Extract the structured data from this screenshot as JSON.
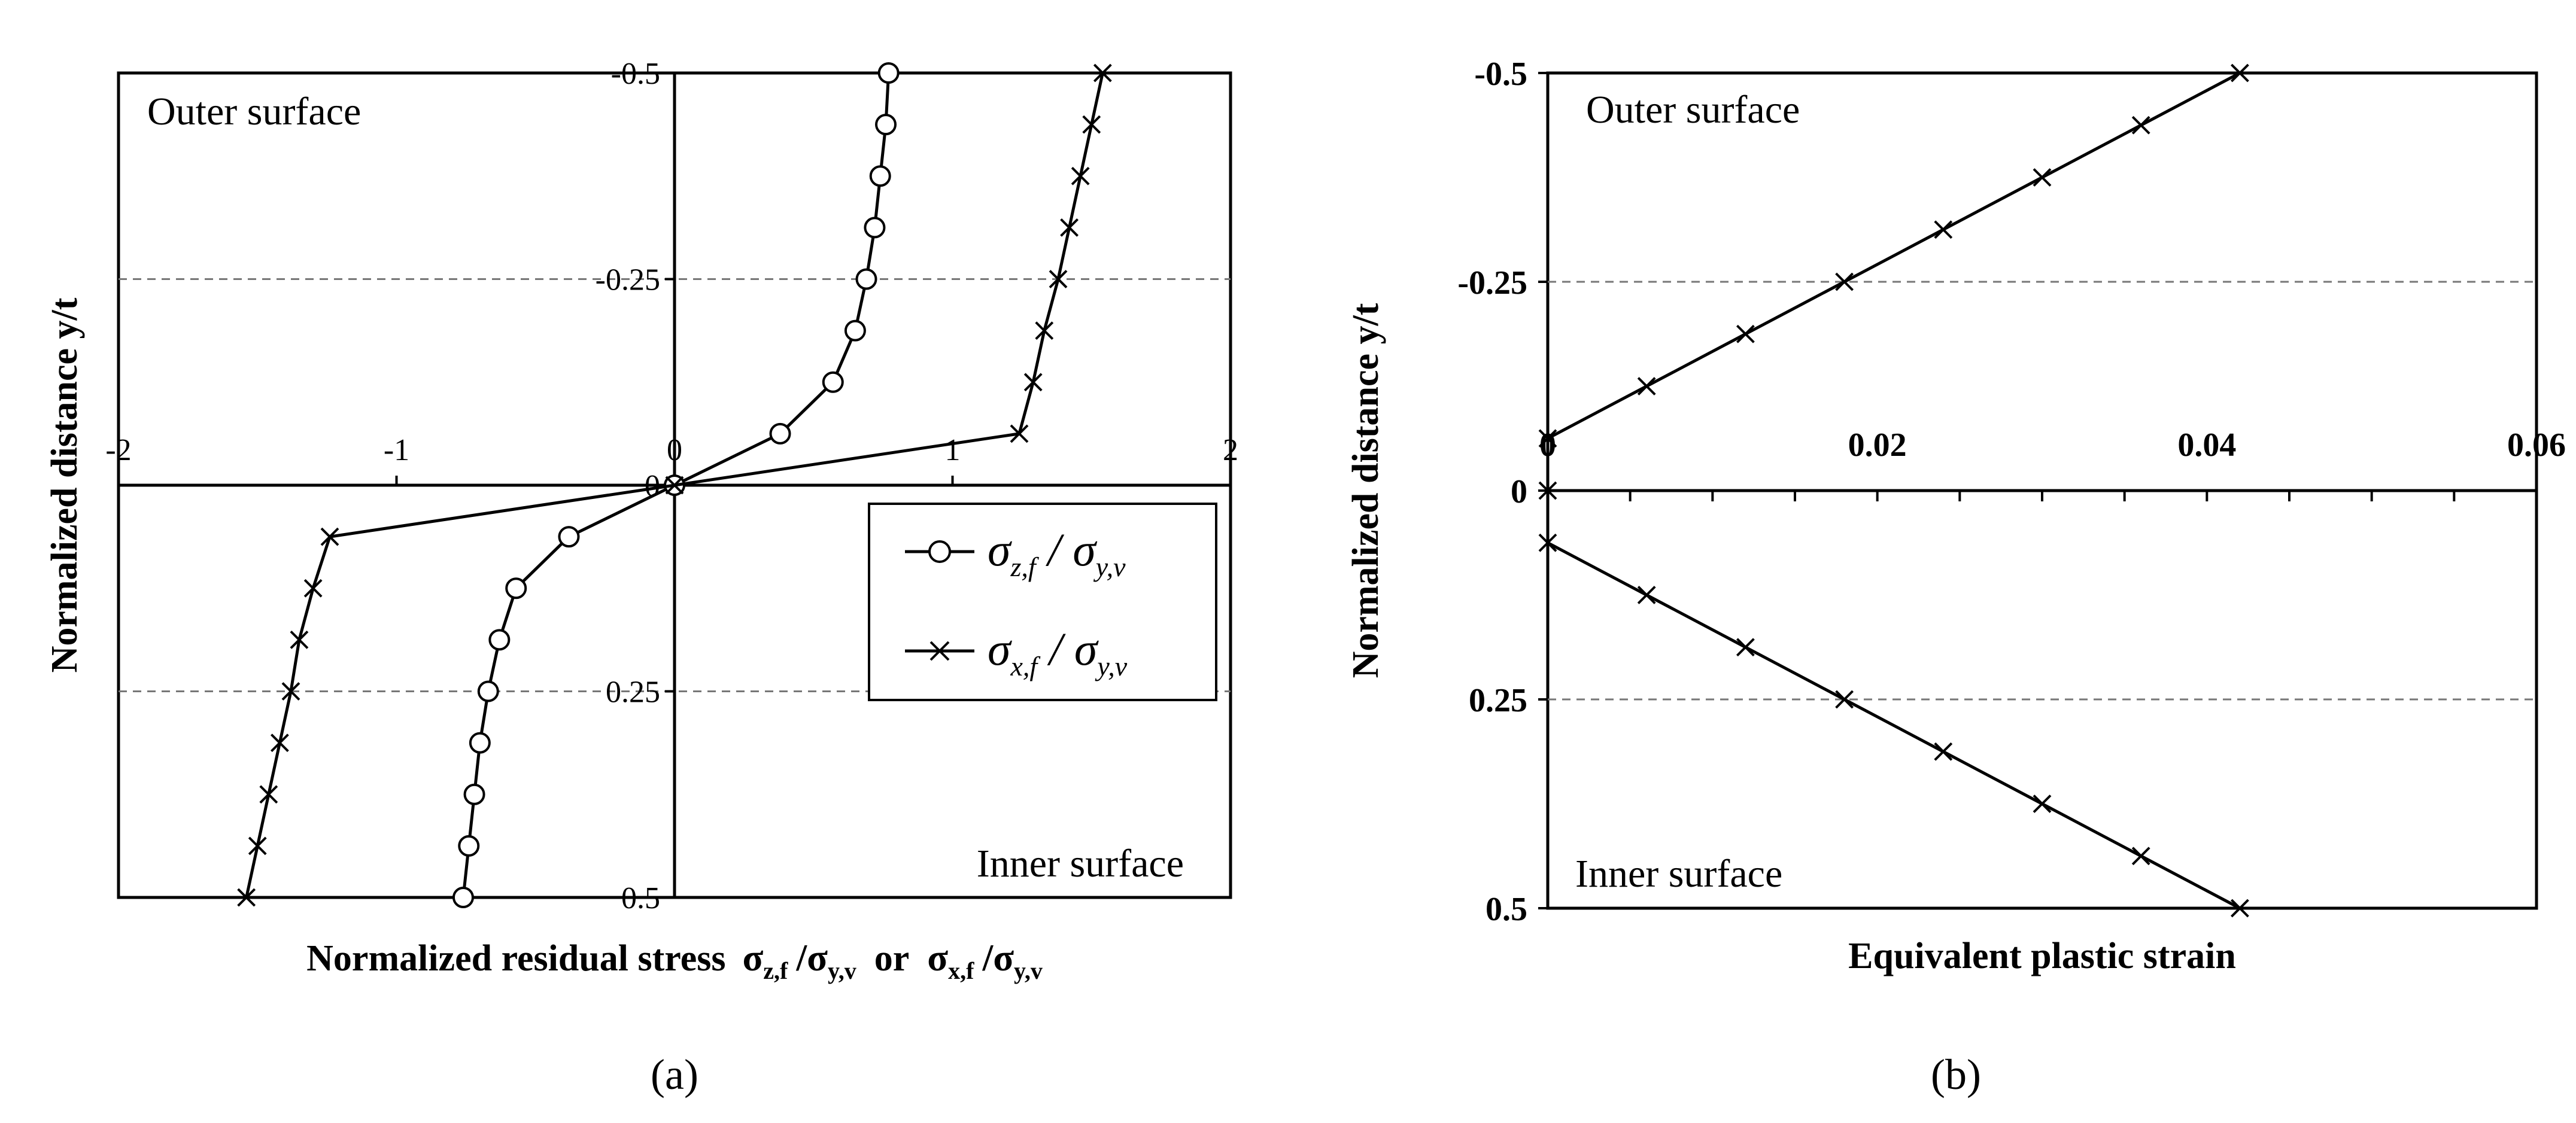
{
  "chart_data": [
    {
      "id": "a",
      "type": "line",
      "caption": "(a)",
      "xlabel": {
        "prefix": "Normalized residual stress",
        "s1": "σ",
        "s1_sub": "z,f",
        "slash": "/",
        "s2": "σ",
        "s2_sub": "y,v",
        "or": "or",
        "s3": "σ",
        "s3_sub": "x,f",
        "s4": "σ",
        "s4_sub": "y,v"
      },
      "ylabel": "Normalized distance  y/t",
      "xlim": [
        -2,
        2
      ],
      "ylim": [
        -0.5,
        0.5
      ],
      "y_inverted": true,
      "x_ticks": [
        {
          "v": -2,
          "label": "-2"
        },
        {
          "v": -1,
          "label": "-1"
        },
        {
          "v": 0,
          "label": "0"
        },
        {
          "v": 1,
          "label": "1"
        },
        {
          "v": 2,
          "label": "2"
        }
      ],
      "y_ticks": [
        {
          "v": -0.5,
          "label": "-0.5"
        },
        {
          "v": -0.25,
          "label": "-0.25"
        },
        {
          "v": 0,
          "label": "0"
        },
        {
          "v": 0.25,
          "label": "0.25"
        },
        {
          "v": 0.5,
          "label": "0.5"
        }
      ],
      "gridlines_y": [
        -0.25,
        0.25
      ],
      "annotations": {
        "outer": "Outer surface",
        "inner": "Inner surface"
      },
      "legend": {
        "position": "right-middle",
        "items": [
          {
            "marker": "circle",
            "num": "σ",
            "num_sub": "z,f",
            "slash": "/",
            "den": "σ",
            "den_sub": "y,v"
          },
          {
            "marker": "x",
            "num": "σ",
            "num_sub": "x,f",
            "slash": "/",
            "den": "σ",
            "den_sub": "y,v"
          }
        ]
      },
      "series": [
        {
          "name": "σz,f/σy,v",
          "marker": "circle",
          "points": [
            [
              0.77,
              -0.5
            ],
            [
              0.76,
              -0.4375
            ],
            [
              0.74,
              -0.375
            ],
            [
              0.72,
              -0.3125
            ],
            [
              0.69,
              -0.25
            ],
            [
              0.65,
              -0.1875
            ],
            [
              0.57,
              -0.125
            ],
            [
              0.38,
              -0.0625
            ],
            [
              0,
              0
            ],
            [
              -0.38,
              0.0625
            ],
            [
              -0.57,
              0.125
            ],
            [
              -0.63,
              0.1875
            ],
            [
              -0.67,
              0.25
            ],
            [
              -0.7,
              0.3125
            ],
            [
              -0.72,
              0.375
            ],
            [
              -0.74,
              0.4375
            ],
            [
              -0.76,
              0.5
            ]
          ]
        },
        {
          "name": "σx,f/σy,v",
          "marker": "x",
          "points": [
            [
              1.54,
              -0.5
            ],
            [
              1.5,
              -0.4375
            ],
            [
              1.46,
              -0.375
            ],
            [
              1.42,
              -0.3125
            ],
            [
              1.38,
              -0.25
            ],
            [
              1.33,
              -0.1875
            ],
            [
              1.29,
              -0.125
            ],
            [
              1.24,
              -0.0625
            ],
            [
              0,
              0
            ],
            [
              -1.24,
              0.0625
            ],
            [
              -1.3,
              0.125
            ],
            [
              -1.35,
              0.1875
            ],
            [
              -1.38,
              0.25
            ],
            [
              -1.42,
              0.3125
            ],
            [
              -1.46,
              0.375
            ],
            [
              -1.5,
              0.4375
            ],
            [
              -1.54,
              0.5
            ]
          ]
        }
      ]
    },
    {
      "id": "b",
      "type": "line",
      "caption": "(b)",
      "xlabel": "Equivalent plastic strain",
      "ylabel": "Normalized distance  y/t",
      "xlim": [
        0,
        0.06
      ],
      "ylim": [
        -0.5,
        0.5
      ],
      "y_inverted": true,
      "x_ticks": [
        {
          "v": 0,
          "label": "0"
        },
        {
          "v": 0.02,
          "label": "0.02"
        },
        {
          "v": 0.04,
          "label": "0.04"
        },
        {
          "v": 0.06,
          "label": "0.06"
        }
      ],
      "x_minor_step": 0.005,
      "y_ticks": [
        {
          "v": -0.5,
          "label": "-0.5"
        },
        {
          "v": -0.25,
          "label": "-0.25"
        },
        {
          "v": 0,
          "label": "0"
        },
        {
          "v": 0.25,
          "label": "0.25"
        },
        {
          "v": 0.5,
          "label": "0.5"
        }
      ],
      "gridlines_y": [
        -0.25,
        0.25
      ],
      "annotations": {
        "outer": "Outer surface",
        "inner": "Inner surface"
      },
      "series": [
        {
          "name": "Equivalent plastic strain",
          "marker": "x",
          "segments": [
            [
              [
                0,
                -0.0625
              ],
              [
                0.006,
                -0.125
              ],
              [
                0.012,
                -0.1875
              ],
              [
                0.018,
                -0.25
              ],
              [
                0.024,
                -0.3125
              ],
              [
                0.03,
                -0.375
              ],
              [
                0.036,
                -0.4375
              ],
              [
                0.042,
                -0.5
              ]
            ],
            [
              [
                0,
                0
              ]
            ],
            [
              [
                0,
                0.0625
              ],
              [
                0.006,
                0.125
              ],
              [
                0.012,
                0.1875
              ],
              [
                0.018,
                0.25
              ],
              [
                0.024,
                0.3125
              ],
              [
                0.03,
                0.375
              ],
              [
                0.036,
                0.4375
              ],
              [
                0.042,
                0.5
              ]
            ]
          ]
        }
      ]
    }
  ]
}
